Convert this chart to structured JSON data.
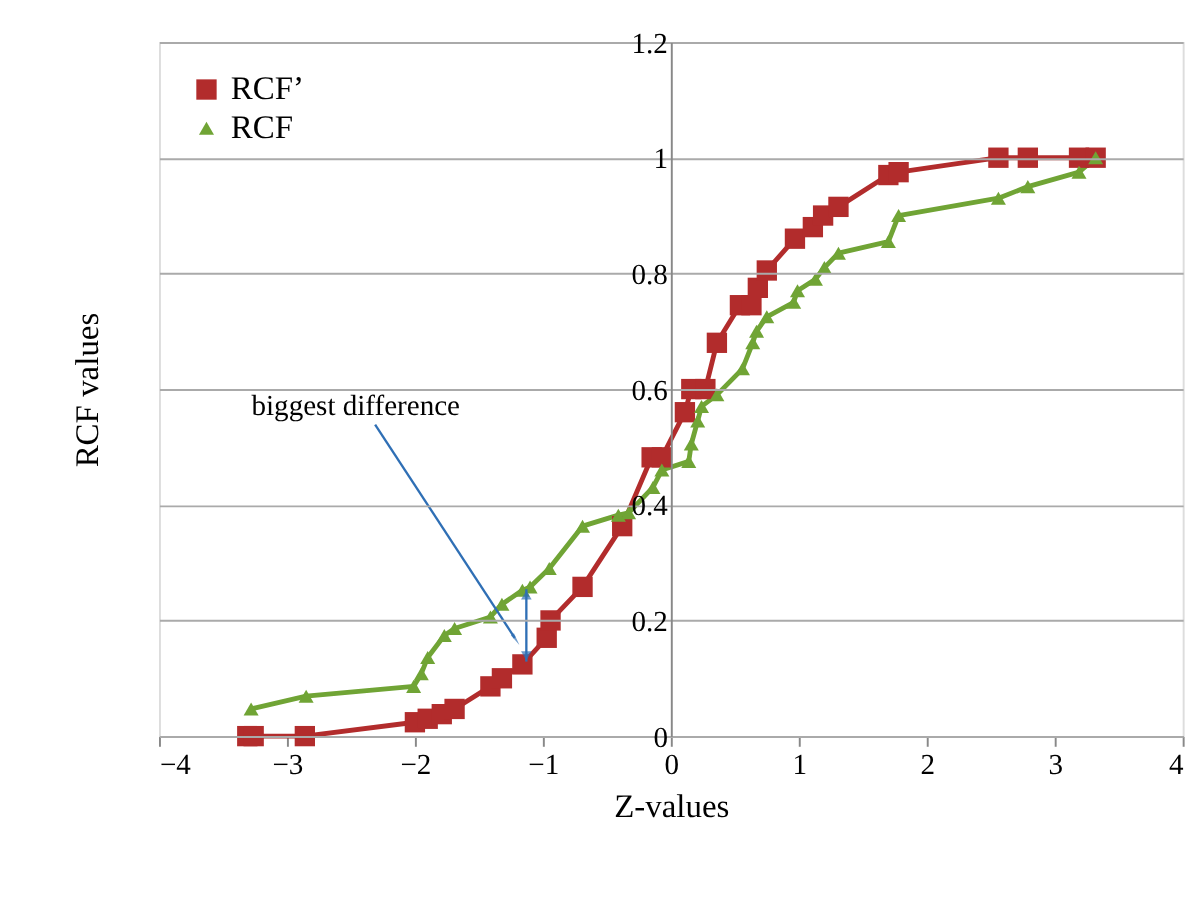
{
  "chart_data": {
    "type": "line",
    "xlabel": "Z-values",
    "ylabel": "RCF values",
    "xlim": [
      -4,
      4
    ],
    "xticks": [
      -4,
      -3,
      -2,
      -1,
      0,
      1,
      2,
      3,
      4
    ],
    "ylim": [
      0,
      1.2
    ],
    "yticks": [
      0,
      0.2,
      0.4,
      0.6,
      0.8,
      1,
      1.2
    ],
    "grid": "y",
    "legend": "top left",
    "line_style": "solid",
    "series": [
      {
        "name": "RCF’",
        "color": "#b22c2c",
        "marker": "square",
        "x": [
          -3.31,
          -3.26,
          -2.86,
          -2.0,
          -1.9,
          -1.79,
          -1.69,
          -1.41,
          -1.32,
          -1.16,
          -0.97,
          -0.94,
          -0.69,
          -0.38,
          -0.15,
          -0.07,
          0.11,
          0.16,
          0.27,
          0.36,
          0.54,
          0.63,
          0.68,
          0.75,
          0.97,
          1.11,
          1.19,
          1.31,
          1.7,
          1.78,
          2.56,
          2.79,
          3.19,
          3.32
        ],
        "values": [
          0,
          0,
          0,
          0.024,
          0.03,
          0.038,
          0.047,
          0.086,
          0.1,
          0.124,
          0.17,
          0.2,
          0.258,
          0.363,
          0.482,
          0.482,
          0.56,
          0.6,
          0.6,
          0.68,
          0.745,
          0.745,
          0.775,
          0.805,
          0.86,
          0.88,
          0.9,
          0.915,
          0.97,
          0.975,
          1,
          1,
          1,
          1
        ]
      },
      {
        "name": "RCF",
        "color": "#70a435",
        "marker": "triangle",
        "x": [
          -3.28,
          -2.85,
          -2.01,
          -1.95,
          -1.9,
          -1.77,
          -1.69,
          -1.41,
          -1.32,
          -1.16,
          -1.1,
          -0.95,
          -0.69,
          -0.41,
          -0.33,
          -0.14,
          -0.07,
          0.14,
          0.16,
          0.21,
          0.24,
          0.36,
          0.56,
          0.64,
          0.67,
          0.75,
          0.96,
          0.99,
          1.13,
          1.2,
          1.31,
          1.7,
          1.78,
          2.56,
          2.79,
          3.19,
          3.32
        ],
        "values": [
          0.047,
          0.069,
          0.086,
          0.108,
          0.136,
          0.174,
          0.186,
          0.206,
          0.228,
          0.252,
          0.258,
          0.29,
          0.363,
          0.382,
          0.386,
          0.43,
          0.46,
          0.475,
          0.505,
          0.545,
          0.57,
          0.59,
          0.635,
          0.68,
          0.7,
          0.725,
          0.75,
          0.77,
          0.79,
          0.81,
          0.835,
          0.855,
          0.9,
          0.93,
          0.95,
          0.975,
          1.0
        ]
      }
    ],
    "annotations": [
      {
        "text": "biggest difference",
        "x": -1.22,
        "y": 0.17
      }
    ]
  }
}
